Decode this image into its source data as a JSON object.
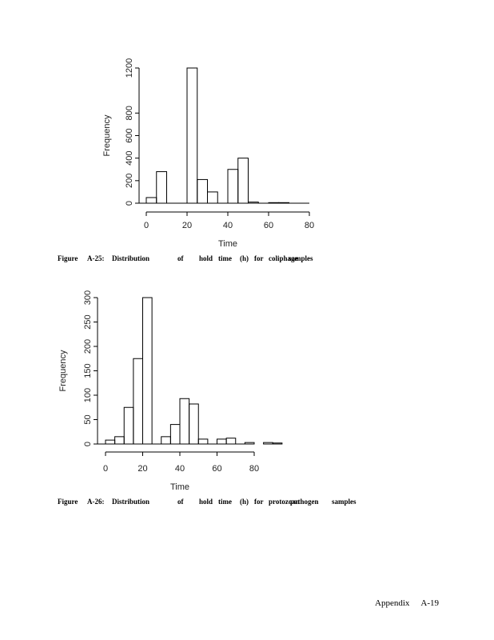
{
  "chart_data": [
    {
      "type": "bar",
      "xlabel": "Time",
      "ylabel": "Frequency",
      "xticks": [
        0,
        20,
        40,
        60,
        80
      ],
      "yticks": [
        0,
        200,
        400,
        600,
        800,
        1200
      ],
      "xlim": [
        0,
        80
      ],
      "ylim": [
        0,
        1200
      ],
      "bin_edges": [
        0,
        5,
        10,
        15,
        20,
        25,
        30,
        35,
        40,
        45,
        50,
        55,
        60,
        65,
        70,
        75
      ],
      "values": [
        50,
        280,
        0,
        0,
        1200,
        210,
        100,
        0,
        300,
        400,
        10,
        0,
        5,
        5,
        0
      ]
    },
    {
      "type": "bar",
      "xlabel": "Time",
      "ylabel": "Frequency",
      "xticks": [
        0,
        20,
        40,
        60,
        80
      ],
      "yticks": [
        0,
        50,
        100,
        150,
        200,
        250,
        300
      ],
      "xlim": [
        0,
        80
      ],
      "ylim": [
        0,
        300
      ],
      "bin_edges": [
        0,
        5,
        10,
        15,
        20,
        25,
        30,
        35,
        40,
        45,
        50,
        55,
        60,
        65,
        70,
        75,
        80,
        85,
        90,
        95
      ],
      "values": [
        8,
        15,
        75,
        175,
        300,
        0,
        15,
        40,
        93,
        82,
        10,
        0,
        10,
        12,
        0,
        3,
        0,
        3,
        2
      ]
    }
  ],
  "captions": [
    {
      "words": [
        "Figure",
        "A-25:",
        "Distribution",
        "of",
        "hold",
        "time",
        "(h)",
        "for",
        "coliphage",
        "samples"
      ]
    },
    {
      "words": [
        "Figure",
        "A-26:",
        "Distribution",
        "of",
        "hold",
        "time",
        "(h)",
        "for",
        "protozoan",
        "pathogen",
        "samples"
      ]
    }
  ],
  "footer": {
    "label": "Appendix",
    "page": "A-19"
  }
}
